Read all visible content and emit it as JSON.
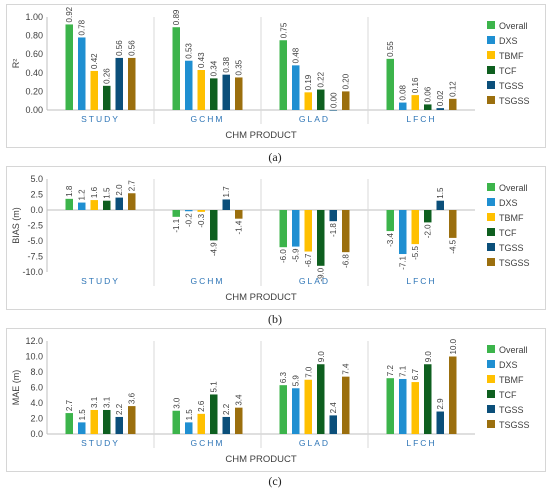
{
  "series_names": [
    "Overall",
    "DXS",
    "TBMF",
    "TCF",
    "TGSS",
    "TSGSS"
  ],
  "colors": {
    "Overall": "#3cb44b",
    "DXS": "#1f8fd1",
    "TBMF": "#ffc000",
    "TCF": "#0e5f1f",
    "TGSS": "#0b4f7a",
    "TSGSS": "#9b6f0e"
  },
  "categories": [
    "STUDY",
    "GCHM",
    "GLAD",
    "LFCH"
  ],
  "xlabel": "CHM PRODUCT",
  "chart_data": [
    {
      "type": "bar",
      "caption": "(a)",
      "ylabel": "R²",
      "ylim": [
        0,
        1.0
      ],
      "yticks": [
        0.0,
        0.2,
        0.4,
        0.6,
        0.8,
        1.0
      ],
      "ytick_labels": [
        "0.00",
        "0.20",
        "0.40",
        "0.60",
        "0.80",
        "1.00"
      ],
      "decimals": 2,
      "categories": [
        "STUDY",
        "GCHM",
        "GLAD",
        "LFCH"
      ],
      "xlabel": "CHM PRODUCT",
      "legend": "right",
      "series": [
        {
          "name": "Overall",
          "values": [
            0.92,
            0.89,
            0.75,
            0.55
          ]
        },
        {
          "name": "DXS",
          "values": [
            0.78,
            0.53,
            0.48,
            0.08
          ]
        },
        {
          "name": "TBMF",
          "values": [
            0.42,
            0.43,
            0.19,
            0.16
          ]
        },
        {
          "name": "TCF",
          "values": [
            0.26,
            0.34,
            0.22,
            0.06
          ]
        },
        {
          "name": "TGSS",
          "values": [
            0.56,
            0.38,
            0.0,
            0.02
          ]
        },
        {
          "name": "TSGSS",
          "values": [
            0.56,
            0.35,
            0.2,
            0.12
          ]
        }
      ]
    },
    {
      "type": "bar",
      "caption": "(b)",
      "ylabel": "BIAS (m)",
      "ylim": [
        -10.0,
        5.0
      ],
      "yticks": [
        -10,
        -7.5,
        -5,
        -2.5,
        0,
        2.5,
        5
      ],
      "ytick_labels": [
        "-10.0",
        "-7.5",
        "-5.0",
        "-2.5",
        "0.0",
        "2.5",
        "5.0"
      ],
      "decimals": 1,
      "categories": [
        "STUDY",
        "GCHM",
        "GLAD",
        "LFCH"
      ],
      "xlabel": "CHM PRODUCT",
      "legend": "right",
      "series": [
        {
          "name": "Overall",
          "values": [
            1.8,
            -1.1,
            -6.0,
            -3.4
          ]
        },
        {
          "name": "DXS",
          "values": [
            1.2,
            -0.2,
            -5.9,
            -7.1
          ]
        },
        {
          "name": "TBMF",
          "values": [
            1.6,
            -0.3,
            -6.7,
            -5.5
          ]
        },
        {
          "name": "TCF",
          "values": [
            1.5,
            -4.9,
            -9.0,
            -2.0
          ]
        },
        {
          "name": "TGSS",
          "values": [
            2.0,
            1.7,
            -1.8,
            1.5
          ]
        },
        {
          "name": "TSGSS",
          "values": [
            2.7,
            -1.4,
            -6.8,
            -4.5
          ]
        }
      ]
    },
    {
      "type": "bar",
      "caption": "(c)",
      "ylabel": "MAE (m)",
      "ylim": [
        0,
        12.0
      ],
      "yticks": [
        0,
        2,
        4,
        6,
        8,
        10,
        12
      ],
      "ytick_labels": [
        "0.0",
        "2.0",
        "4.0",
        "6.0",
        "8.0",
        "10.0",
        "12.0"
      ],
      "decimals": 1,
      "categories": [
        "STUDY",
        "GCHM",
        "GLAD",
        "LFCH"
      ],
      "xlabel": "CHM PRODUCT",
      "legend": "right",
      "series": [
        {
          "name": "Overall",
          "values": [
            2.7,
            3.0,
            6.3,
            7.2
          ]
        },
        {
          "name": "DXS",
          "values": [
            1.5,
            1.5,
            5.9,
            7.1
          ]
        },
        {
          "name": "TBMF",
          "values": [
            3.1,
            2.6,
            7.0,
            6.7
          ]
        },
        {
          "name": "TCF",
          "values": [
            3.1,
            5.1,
            9.0,
            9.0
          ]
        },
        {
          "name": "TGSS",
          "values": [
            2.2,
            2.2,
            2.4,
            2.9
          ]
        },
        {
          "name": "TSGSS",
          "values": [
            3.6,
            3.4,
            7.4,
            10.0
          ]
        }
      ]
    }
  ]
}
